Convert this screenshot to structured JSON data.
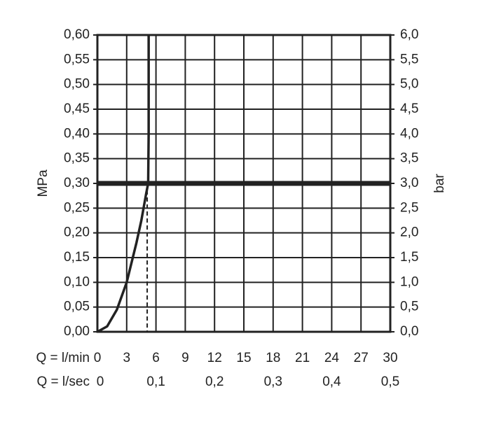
{
  "chart_data": {
    "type": "line",
    "y_label": "MPa",
    "y2_label": "bar",
    "x_label": "Q = l/min",
    "x2_label": "Q = l/sec",
    "xlim": [
      0,
      30
    ],
    "xticks": [
      0,
      3,
      6,
      9,
      12,
      15,
      18,
      21,
      24,
      27,
      30
    ],
    "x2lim": [
      0,
      0.5
    ],
    "x2ticks": [
      0,
      {
        "value": 0.1,
        "label": "0,1"
      },
      {
        "value": 0.2,
        "label": "0,2"
      },
      {
        "value": 0.3,
        "label": "0,3"
      },
      {
        "value": 0.4,
        "label": "0,4"
      },
      {
        "value": 0.5,
        "label": "0,5"
      }
    ],
    "ylim": [
      0,
      0.6
    ],
    "yticks": [
      {
        "value": 0,
        "label": "0,00"
      },
      {
        "value": 0.05,
        "label": "0,05"
      },
      {
        "value": 0.1,
        "label": "0,10"
      },
      {
        "value": 0.15,
        "label": "0,15"
      },
      {
        "value": 0.2,
        "label": "0,20"
      },
      {
        "value": 0.25,
        "label": "0,25"
      },
      {
        "value": 0.3,
        "label": "0,30"
      },
      {
        "value": 0.35,
        "label": "0,35"
      },
      {
        "value": 0.4,
        "label": "0,40"
      },
      {
        "value": 0.45,
        "label": "0,45"
      },
      {
        "value": 0.5,
        "label": "0,50"
      },
      {
        "value": 0.55,
        "label": "0,55"
      },
      {
        "value": 0.6,
        "label": "0,60"
      }
    ],
    "y2lim": [
      0,
      6
    ],
    "y2ticks": [
      {
        "value": 0,
        "label": "0,0"
      },
      {
        "value": 0.5,
        "label": "0,5"
      },
      {
        "value": 1,
        "label": "1,0"
      },
      {
        "value": 1.5,
        "label": "1,5"
      },
      {
        "value": 2,
        "label": "2,0"
      },
      {
        "value": 2.5,
        "label": "2,5"
      },
      {
        "value": 3,
        "label": "3,0"
      },
      {
        "value": 3.5,
        "label": "3,5"
      },
      {
        "value": 4,
        "label": "4,0"
      },
      {
        "value": 4.5,
        "label": "4,5"
      },
      {
        "value": 5,
        "label": "5,0"
      },
      {
        "value": 5.5,
        "label": "5,5"
      },
      {
        "value": 6,
        "label": "6,0"
      }
    ],
    "grid": true,
    "reference_line": 0.3,
    "marker_x": 5.1,
    "series": [
      {
        "color": "#222222",
        "x": [
          0,
          1,
          2,
          3,
          4,
          4.5,
          5,
          5.2,
          5.25,
          5.25
        ],
        "values": [
          0,
          0.011,
          0.045,
          0.1,
          0.18,
          0.225,
          0.28,
          0.3,
          0.4,
          0.6
        ]
      }
    ]
  }
}
